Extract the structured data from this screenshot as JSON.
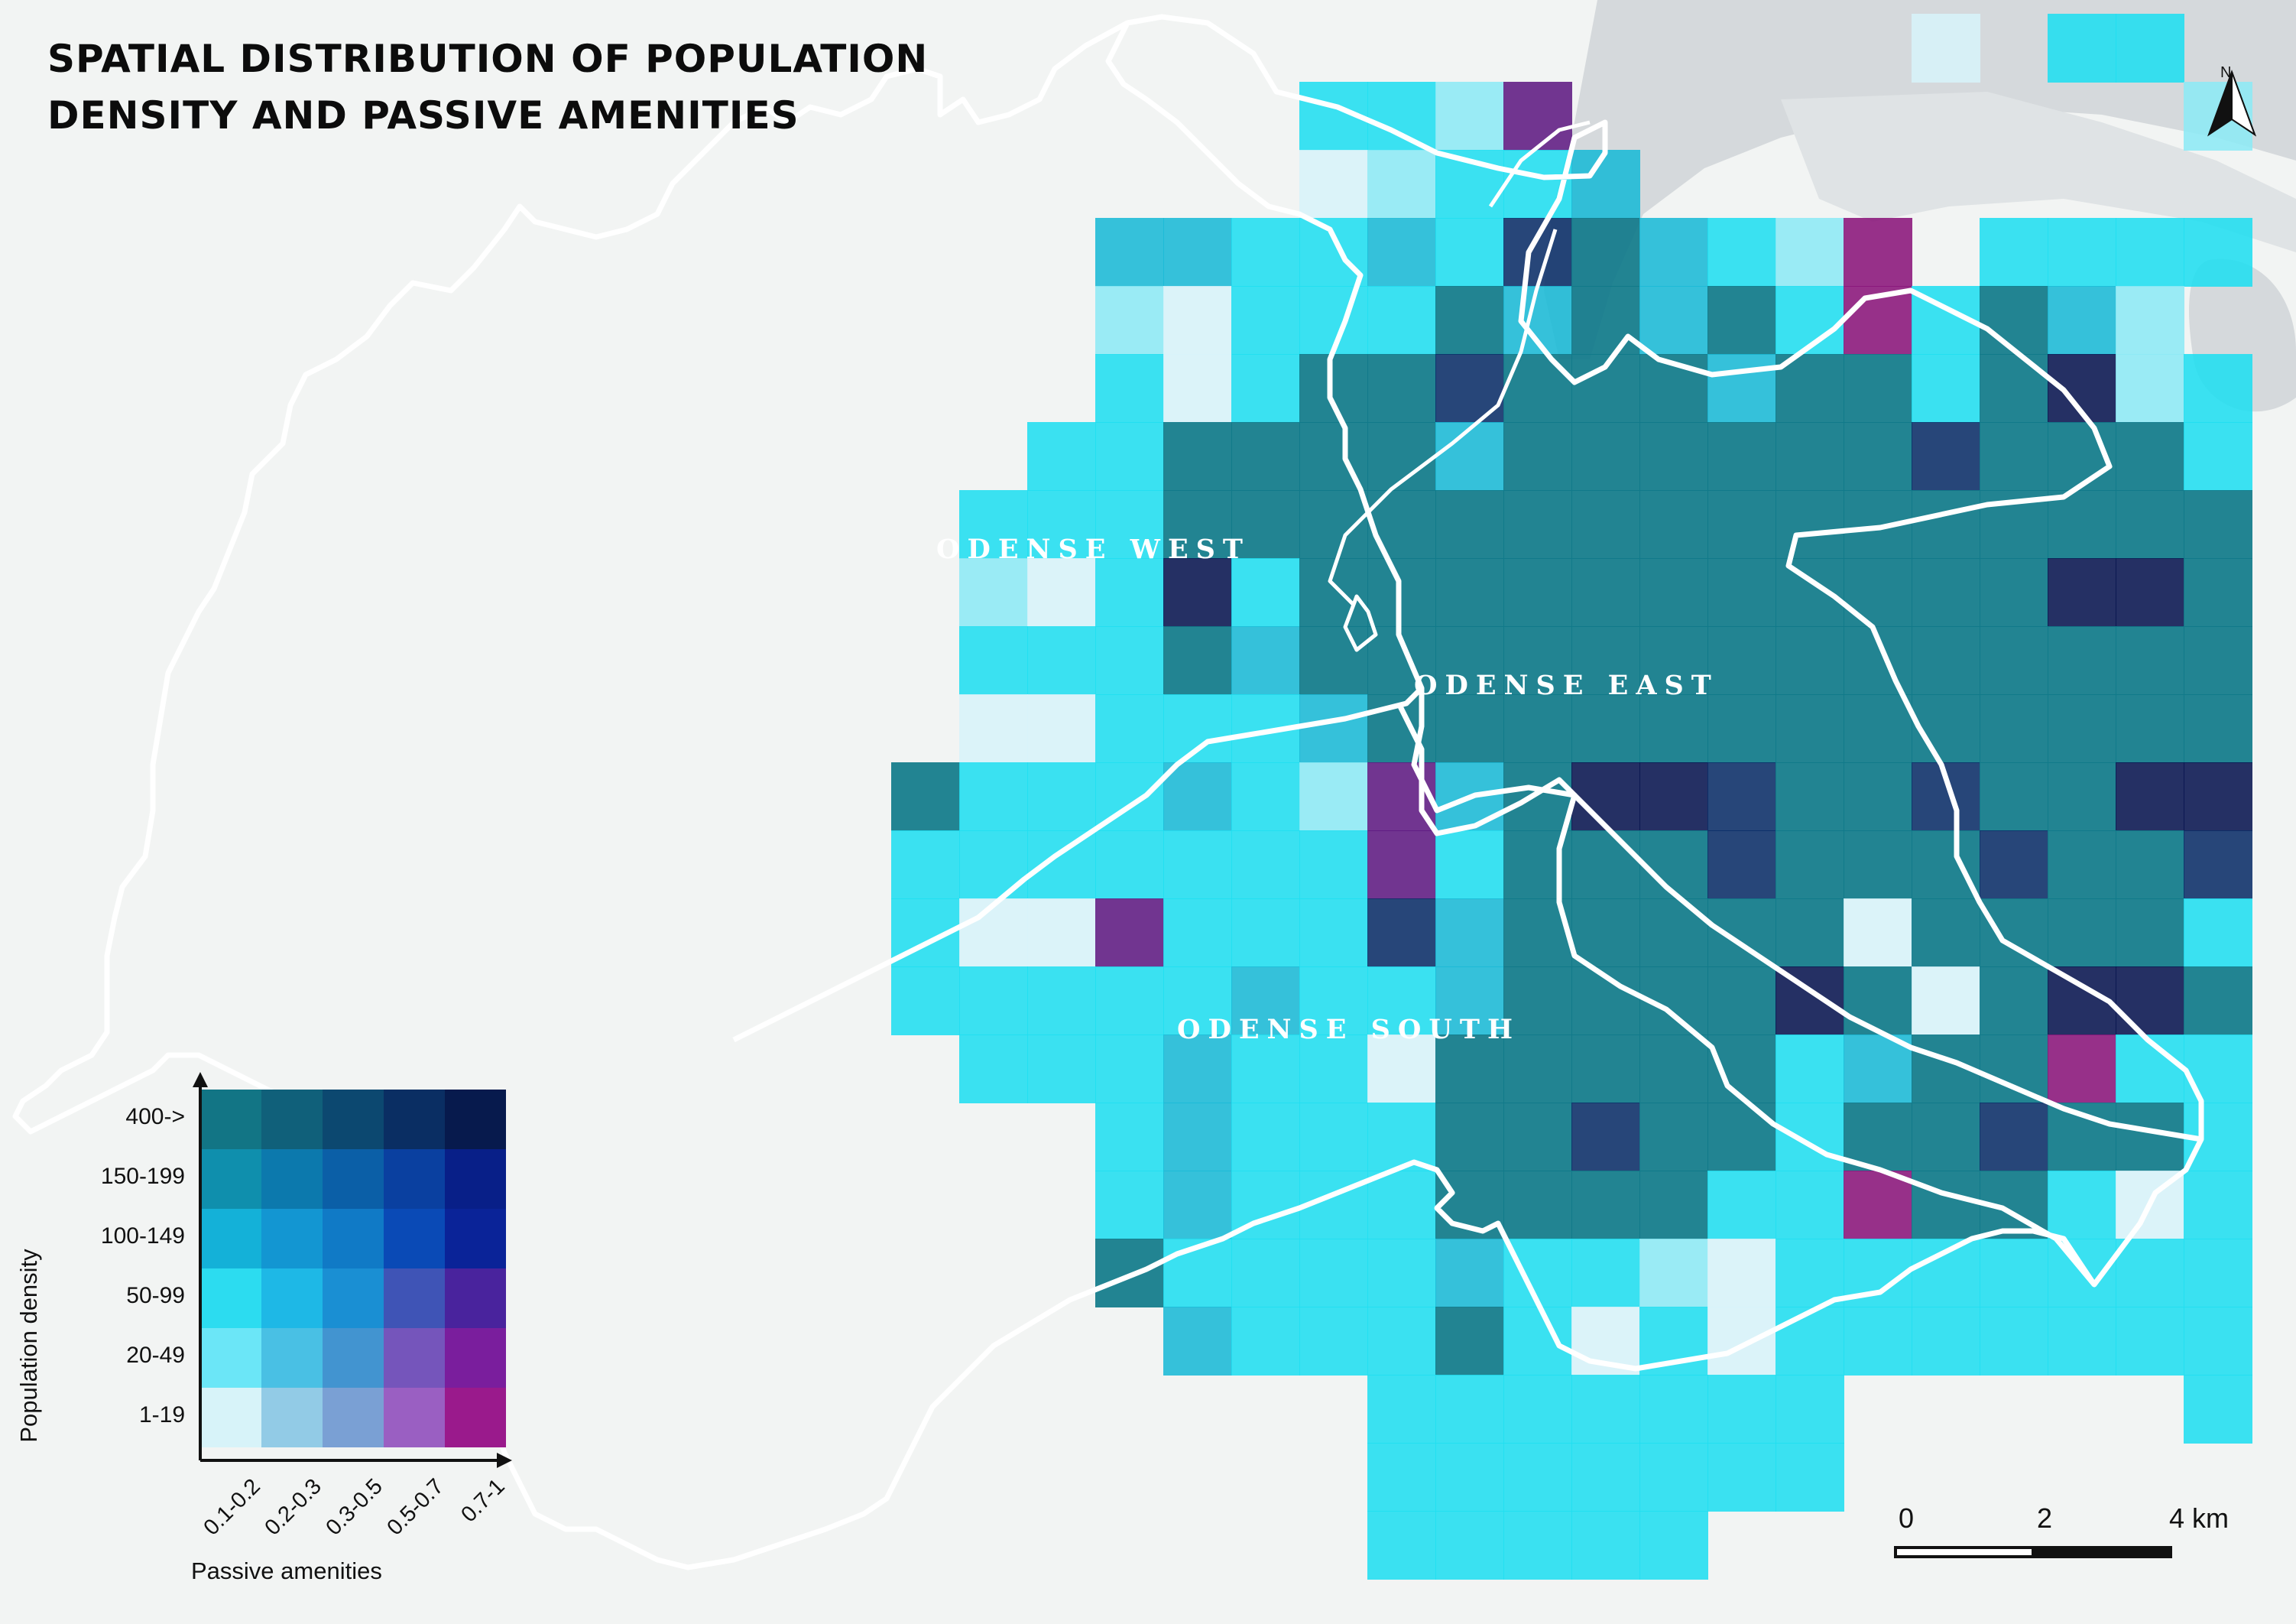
{
  "title": {
    "line1": "SPATIAL DISTRIBUTION OF POPULATION",
    "line2": "DENSITY AND PASSIVE AMENITIES"
  },
  "districts": {
    "west": "ODENSE WEST",
    "east": "ODENSE EAST",
    "south": "ODENSE SOUTH"
  },
  "north_arrow": {
    "label": "N"
  },
  "scale_bar": {
    "ticks": [
      "0",
      "2",
      "4 km"
    ]
  },
  "legend": {
    "ylabel": "Population density",
    "xlabel": "Passive amenities",
    "rows": [
      "400->",
      "150-199",
      "100-149",
      "50-99",
      "20-49",
      "1-19"
    ],
    "cols": [
      "0.1-0.2",
      "0.2-0.3",
      "0.3-0.5",
      "0.5-0.7",
      "0.7-1"
    ],
    "colors": [
      [
        "#127585",
        "#10607a",
        "#0c4870",
        "#0a2e63",
        "#071a4d"
      ],
      [
        "#0f8fad",
        "#0c79ad",
        "#0b5fa7",
        "#0a40a0",
        "#081f88"
      ],
      [
        "#14b1d8",
        "#1396d2",
        "#107ac6",
        "#0a4ab6",
        "#0a2398"
      ],
      [
        "#2cdcf0",
        "#1eb8e6",
        "#1a8fd3",
        "#3f54b6",
        "#49239d"
      ],
      [
        "#6be6f7",
        "#49c0e4",
        "#4294d0",
        "#7555bb",
        "#7a1e9d"
      ],
      [
        "#d7f3f9",
        "#92cbe6",
        "#7aa0d4",
        "#9a5fc2",
        "#9a1a8c"
      ]
    ]
  },
  "colors": {
    "background": "#f2f4f3",
    "water": "#d5d9dc",
    "grid_light": "#d7f3f9",
    "grid_paleblue": "#8de9f5",
    "grid_cyan": "#20def0",
    "grid_mid": "#1ab9d6",
    "grid_teal": "#107a8a",
    "grid_teal2": "#0e6f85",
    "grid_navy": "#0a2d68",
    "grid_darkblue": "#081450",
    "grid_purple": "#5e1a82",
    "grid_magenta": "#8a157a",
    "boundary": "#ffffff"
  }
}
